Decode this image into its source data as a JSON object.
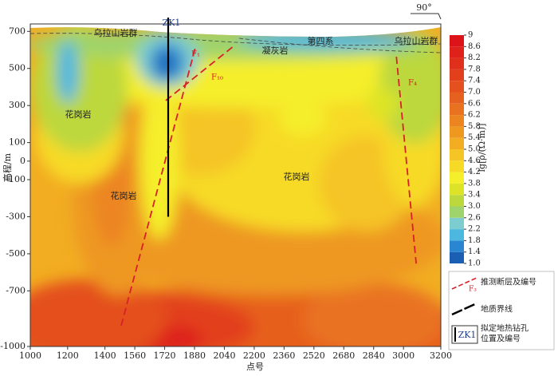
{
  "chart_data": {
    "type": "contour",
    "xlabel": "点号",
    "ylabel": "高程/m",
    "xlim": [
      1000,
      3200
    ],
    "xticks": [
      1000,
      1200,
      1400,
      1560,
      1720,
      1880,
      2040,
      2200,
      2360,
      2520,
      2680,
      2840,
      3000,
      3200
    ],
    "ylim": [
      -1000,
      740
    ],
    "yticks": [
      700,
      500,
      300,
      100,
      0,
      -100,
      -300,
      -500,
      -700,
      -1000
    ],
    "orientation_label": "90°",
    "colorbar": {
      "label": "lg[ρ/(Ω·m)]",
      "ticks": [
        {
          "value": 1.0,
          "label": "1.0"
        },
        1.4,
        1.8,
        2.2,
        2.6,
        {
          "value": 3.0,
          "label": "3.0"
        },
        3.4,
        3.8,
        4.2,
        4.6,
        {
          "value": 5.0,
          "label": "5.0"
        },
        5.4,
        5.8,
        6.2,
        6.6,
        {
          "value": 7.0,
          "label": "7.0"
        },
        7.4,
        7.8,
        8.2,
        8.6,
        9
      ],
      "colors": [
        "#1a5fb4",
        "#2a86d0",
        "#4cb8e0",
        "#7dcdd0",
        "#9fd36c",
        "#bcd83c",
        "#dde428",
        "#f5ee2a",
        "#f7da25",
        "#f5c425",
        "#f2ad22",
        "#ee9820",
        "#ec8520",
        "#e97220",
        "#e6611f",
        "#e4501e",
        "#e2401d",
        "#e0301c",
        "#de211b",
        "#dc141a"
      ]
    },
    "faults": [
      {
        "name": "F₁",
        "x": [
          1487,
          1885
        ],
        "y": [
          -888,
          614
        ]
      },
      {
        "name": "F₁₀",
        "x": [
          1726,
          2098
        ],
        "y": [
          327,
          627
        ]
      },
      {
        "name": "F₄",
        "x": [
          2962,
          3068
        ],
        "y": [
          563,
          -553
        ]
      }
    ],
    "borehole": {
      "name": "ZK1",
      "x": [
        1739,
        1739
      ],
      "y": [
        740,
        -300
      ]
    },
    "annotations": [
      "乌拉山岩群",
      "第四系",
      "凝灰岩",
      "乌拉山岩群",
      "花岗岩",
      "花岗岩",
      "花岗岩"
    ],
    "legend": [
      {
        "symbol_text": "F₃",
        "label": "推测断层及编号"
      },
      {
        "label": "地质界线"
      },
      {
        "symbol_text": "ZK1",
        "label": [
          "拟定地热钻孔",
          "位置及编号"
        ]
      }
    ]
  }
}
